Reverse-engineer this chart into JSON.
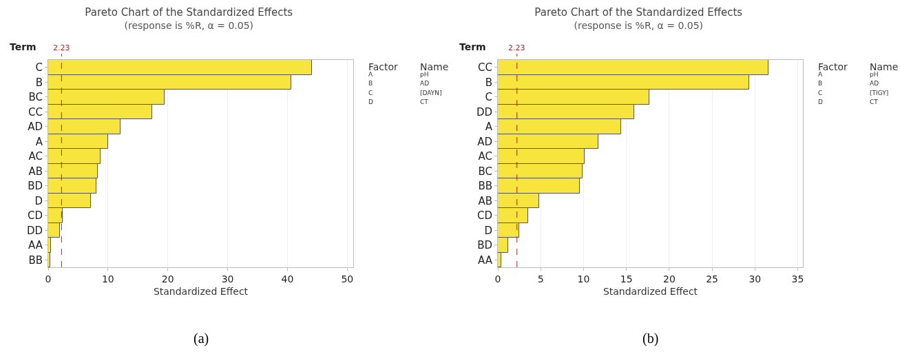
{
  "chart_data": [
    {
      "type": "bar",
      "orientation": "horizontal",
      "title": "Pareto Chart of the Standardized Effects",
      "subtitle": "(response is %R, α = 0.05)",
      "xlabel": "Standardized Effect",
      "ylabel": "Term",
      "categories": [
        "C",
        "B",
        "BC",
        "CC",
        "AD",
        "A",
        "AC",
        "AB",
        "BD",
        "D",
        "CD",
        "DD",
        "AA",
        "BB"
      ],
      "values": [
        44.1,
        40.6,
        19.4,
        17.4,
        12.1,
        10.0,
        8.8,
        8.3,
        8.1,
        7.1,
        2.4,
        1.9,
        0.5,
        0.4
      ],
      "color": "#f7e43c",
      "xlim": [
        0,
        51
      ],
      "xticks": [
        0,
        10,
        20,
        30,
        40,
        50
      ],
      "grid": "x",
      "ref_lines": [
        {
          "axis": "x",
          "value": 2.23,
          "label": "2.23",
          "color": "#b22222",
          "line_style": "dashed"
        }
      ],
      "annotations": [
        "Factor",
        "Name",
        "A",
        "pH",
        "B",
        "AD",
        "C",
        "[DAYN]",
        "D",
        "CT",
        "(a)"
      ]
    },
    {
      "type": "bar",
      "orientation": "horizontal",
      "title": "Pareto Chart of the Standardized Effects",
      "subtitle": "(response is %R, α = 0.05)",
      "xlabel": "Standardized Effect",
      "ylabel": "Term",
      "categories": [
        "CC",
        "B",
        "C",
        "DD",
        "A",
        "AD",
        "AC",
        "BC",
        "BB",
        "AB",
        "CD",
        "D",
        "BD",
        "AA"
      ],
      "values": [
        31.6,
        29.3,
        17.7,
        15.9,
        14.4,
        11.7,
        10.1,
        9.9,
        9.6,
        4.8,
        3.5,
        2.5,
        1.2,
        0.4
      ],
      "color": "#f7e43c",
      "xlim": [
        0,
        35.6
      ],
      "xticks": [
        0,
        5,
        10,
        15,
        20,
        25,
        30,
        35
      ],
      "grid": "x",
      "ref_lines": [
        {
          "axis": "x",
          "value": 2.23,
          "label": "2.23",
          "color": "#b22222",
          "line_style": "dashed"
        }
      ],
      "annotations": [
        "Factor",
        "Name",
        "A",
        "pH",
        "B",
        "AD",
        "C",
        "[TIGY]",
        "D",
        "CT",
        "(b)"
      ]
    }
  ]
}
